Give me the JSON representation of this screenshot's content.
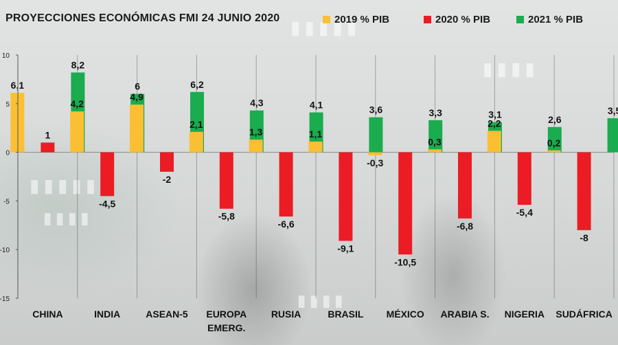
{
  "colors": {
    "y2019": "#fbbf33",
    "y2020": "#ec1c24",
    "y2021": "#1aac4f"
  },
  "chart_data": {
    "type": "bar",
    "title": "PROYECCIONES ECONÓMICAS FMI 24 JUNIO 2020",
    "xlabel": "",
    "ylabel": "",
    "ylim": [
      -15,
      10
    ],
    "yticks": [
      "10",
      "5",
      "0",
      "-5",
      "-10",
      "-15"
    ],
    "legend": "top",
    "categories": [
      "CHINA",
      "INDIA",
      "ASEAN-5",
      "EUROPA EMERG.",
      "RUSIA",
      "BRASIL",
      "MÉXICO",
      "ARABIA S.",
      "NIGERIA",
      "SUDÁFRICA"
    ],
    "category_lines": [
      [
        "CHINA"
      ],
      [
        "INDIA"
      ],
      [
        "ASEAN-5"
      ],
      [
        "EUROPA",
        "EMERG."
      ],
      [
        "RUSIA"
      ],
      [
        "BRASIL"
      ],
      [
        "MÉXICO"
      ],
      [
        "ARABIA S."
      ],
      [
        "NIGERIA"
      ],
      [
        "SUDÁFRICA"
      ]
    ],
    "series": [
      {
        "name": "2019 % PIB",
        "values": [
          6.1,
          4.2,
          4.9,
          2.1,
          1.3,
          1.1,
          -0.3,
          0.3,
          2.2,
          0.2
        ],
        "labels": [
          "6,1",
          "4,2",
          "4,9",
          "2,1",
          "1,3",
          "1,1",
          "-0,3",
          "0,3",
          "2,2",
          "0,2"
        ]
      },
      {
        "name": "2020 % PIB",
        "values": [
          1,
          -4.5,
          -2,
          -5.8,
          -6.6,
          -9.1,
          -10.5,
          -6.8,
          -5.4,
          -8
        ],
        "labels": [
          "1",
          "-4,5",
          "-2",
          "-5,8",
          "-6,6",
          "-9,1",
          "-10,5",
          "-6,8",
          "-5,4",
          "-8"
        ]
      },
      {
        "name": "2021 % PIB",
        "values": [
          8.2,
          6,
          6.2,
          4.3,
          4.1,
          3.6,
          3.3,
          3.1,
          2.6,
          3.5
        ],
        "labels": [
          "8,2",
          "6",
          "6,2",
          "4,3",
          "4,1",
          "3,6",
          "3,3",
          "3,1",
          "2,6",
          "3,5"
        ]
      }
    ]
  }
}
